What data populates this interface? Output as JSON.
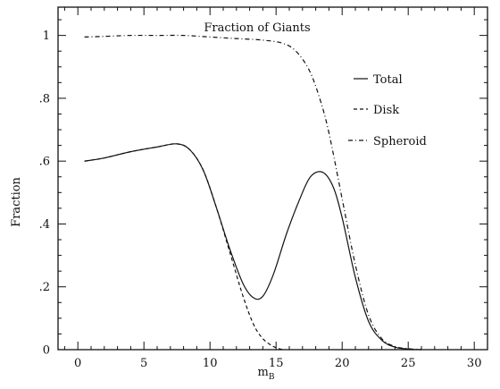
{
  "chart_data": {
    "type": "line",
    "title": "Fraction of Giants",
    "xlabel": "m",
    "xlabel_sub": "B",
    "ylabel": "Fraction",
    "xlim": [
      -1.5,
      31
    ],
    "ylim": [
      0,
      1.09
    ],
    "x_ticks": [
      0,
      5,
      10,
      15,
      20,
      25,
      30
    ],
    "x_tick_labels": [
      "0",
      "5",
      "10",
      "15",
      "20",
      "25",
      "30"
    ],
    "y_ticks": [
      0,
      0.2,
      0.4,
      0.6,
      0.8,
      1.0
    ],
    "y_tick_labels": [
      "0",
      ".2",
      ".4",
      ".6",
      ".8",
      "1"
    ],
    "legend_position": "right",
    "series": [
      {
        "name": "Total",
        "style": "solid",
        "x": [
          0.5,
          2,
          4,
          6,
          7.5,
          8.5,
          9.5,
          10.5,
          11.5,
          12.5,
          13.3,
          14,
          14.8,
          15.8,
          16.8,
          17.6,
          18.5,
          19.3,
          20,
          21,
          22,
          23,
          24,
          25,
          26
        ],
        "y": [
          0.6,
          0.61,
          0.63,
          0.645,
          0.655,
          0.635,
          0.57,
          0.45,
          0.32,
          0.21,
          0.165,
          0.17,
          0.24,
          0.37,
          0.48,
          0.55,
          0.565,
          0.52,
          0.42,
          0.23,
          0.09,
          0.03,
          0.008,
          0.002,
          0.0
        ]
      },
      {
        "name": "Disk",
        "style": "dashed",
        "x": [
          0.5,
          2,
          4,
          6,
          7.5,
          8.5,
          9.5,
          10.5,
          11.5,
          12.5,
          13.3,
          14,
          14.8,
          15.5
        ],
        "y": [
          0.6,
          0.61,
          0.63,
          0.645,
          0.655,
          0.635,
          0.57,
          0.45,
          0.31,
          0.17,
          0.08,
          0.035,
          0.01,
          0.0
        ]
      },
      {
        "name": "Spheroid",
        "style": "dash-dot",
        "x": [
          0.5,
          2,
          4,
          6,
          8,
          10,
          12,
          14,
          15.5,
          16.5,
          17.5,
          18.3,
          19,
          20,
          21,
          22,
          23,
          24,
          25,
          26
        ],
        "y": [
          0.995,
          0.997,
          1.0,
          1.0,
          1.0,
          0.995,
          0.99,
          0.985,
          0.975,
          0.95,
          0.89,
          0.8,
          0.69,
          0.48,
          0.27,
          0.11,
          0.035,
          0.01,
          0.003,
          0.0
        ]
      }
    ]
  }
}
